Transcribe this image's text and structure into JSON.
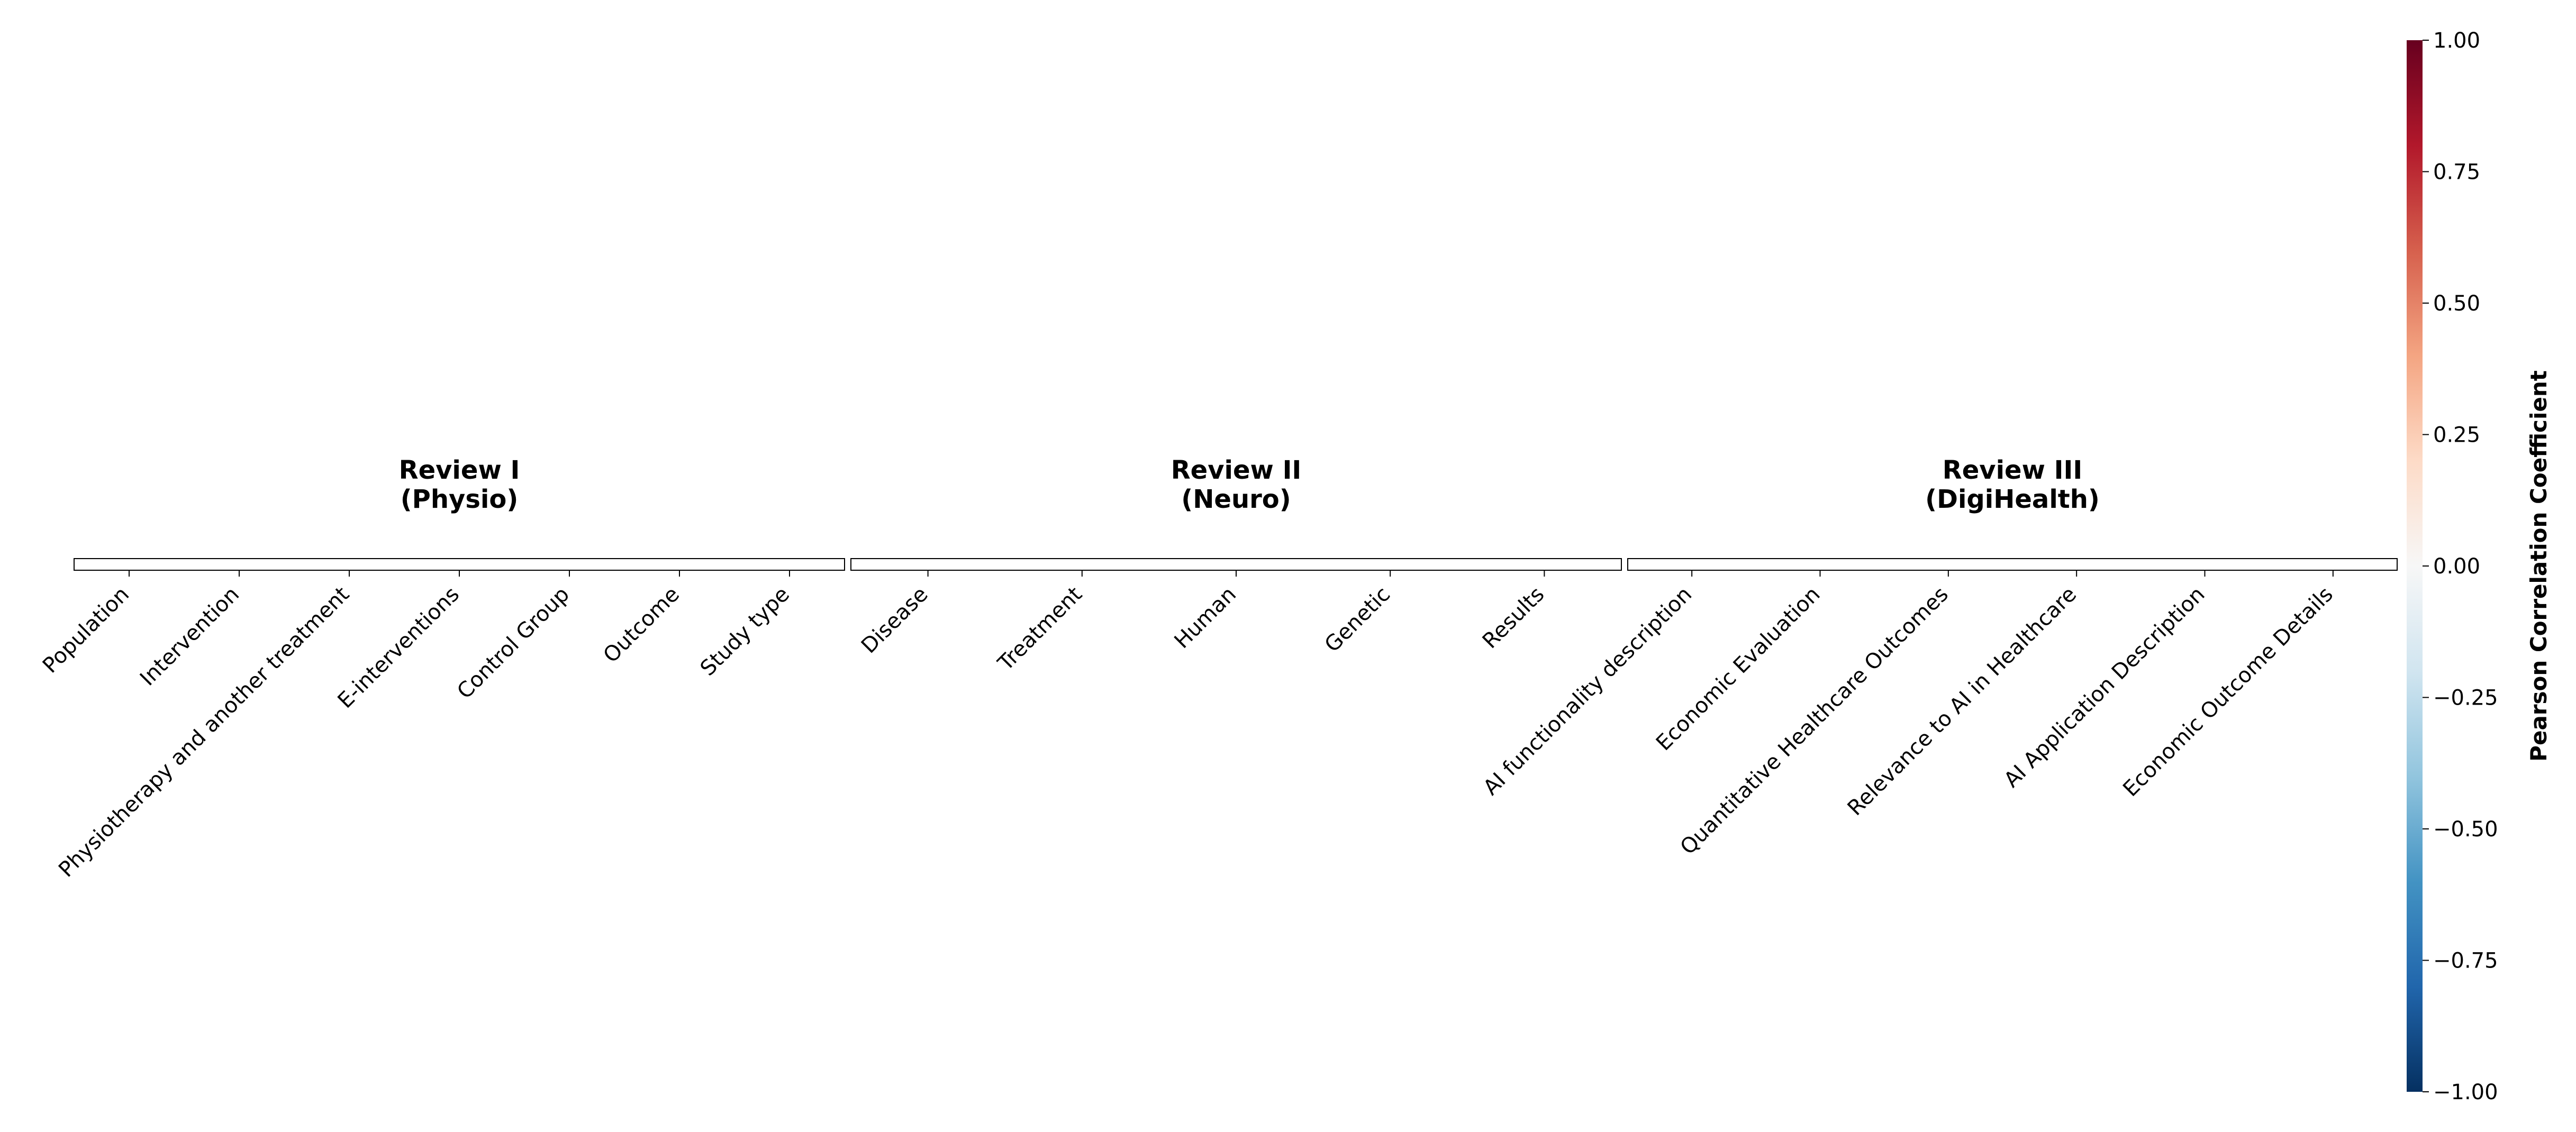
{
  "chart_data": {
    "type": "heatmap",
    "panels": [
      {
        "title_line1": "Review I",
        "title_line2": "(Physio)",
        "categories": [
          "Population",
          "Intervention",
          "Physiotherapy and another treatment",
          "E-interventions",
          "Control Group",
          "Outcome",
          "Study type"
        ]
      },
      {
        "title_line1": "Review II",
        "title_line2": "(Neuro)",
        "categories": [
          "Disease",
          "Treatment",
          "Human",
          "Genetic",
          "Results"
        ]
      },
      {
        "title_line1": "Review III",
        "title_line2": "(DigiHealth)",
        "categories": [
          "AI functionality description",
          "Economic Evaluation",
          "Quantitative Healthcare Outcomes",
          "Relevance to AI in Healthcare",
          "AI Application Description",
          "Economic Outcome Details"
        ]
      }
    ],
    "colorbar": {
      "label": "Pearson Correlation Coefficient",
      "range": [
        -1.0,
        1.0
      ],
      "ticks": [
        "1.00",
        "0.75",
        "0.50",
        "0.25",
        "0.00",
        "−0.25",
        "−0.50",
        "−0.75",
        "−1.00"
      ],
      "tick_values": [
        1.0,
        0.75,
        0.5,
        0.25,
        0.0,
        -0.25,
        -0.5,
        -0.75,
        -1.0
      ],
      "colormap": "RdBu_r",
      "colors": [
        "#053061",
        "#2166ac",
        "#4393c3",
        "#92c5de",
        "#d1e5f0",
        "#f7f7f7",
        "#fddbc7",
        "#f4a582",
        "#d6604d",
        "#b2182b",
        "#67001f"
      ]
    }
  }
}
